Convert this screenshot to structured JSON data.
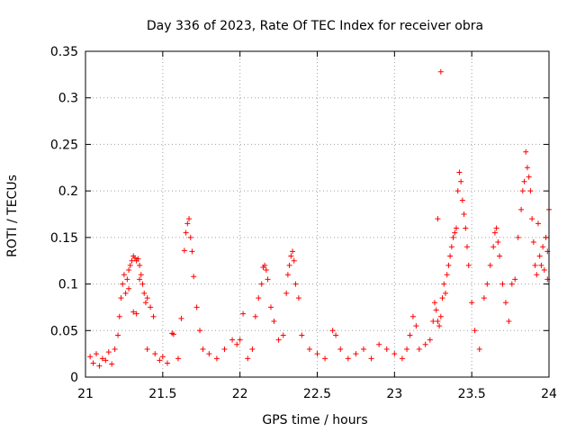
{
  "chart_data": {
    "type": "scatter",
    "title": "Day 336 of 2023, Rate Of TEC Index for receiver obra",
    "xlabel": "GPS time / hours",
    "ylabel": "ROTI / TECUs",
    "xlim": [
      21,
      24
    ],
    "ylim": [
      0,
      0.35
    ],
    "xticks": [
      21,
      21.5,
      22,
      22.5,
      23,
      23.5,
      24
    ],
    "xtick_labels": [
      "21",
      "21.5",
      "22",
      "22.5",
      "23",
      "23.5",
      "24"
    ],
    "yticks": [
      0,
      0.05,
      0.1,
      0.15,
      0.2,
      0.25,
      0.3,
      0.35
    ],
    "ytick_labels": [
      "0",
      "0.05",
      "0.1",
      "0.15",
      "0.2",
      "0.25",
      "0.3",
      "0.35"
    ],
    "grid": true,
    "marker": "+",
    "marker_color": "#ff0000",
    "series": [
      {
        "name": "ROTI",
        "points": [
          [
            21.03,
            0.022
          ],
          [
            21.05,
            0.015
          ],
          [
            21.07,
            0.025
          ],
          [
            21.09,
            0.012
          ],
          [
            21.11,
            0.02
          ],
          [
            21.13,
            0.018
          ],
          [
            21.15,
            0.027
          ],
          [
            21.17,
            0.014
          ],
          [
            21.19,
            0.03
          ],
          [
            21.21,
            0.045
          ],
          [
            21.22,
            0.065
          ],
          [
            21.23,
            0.085
          ],
          [
            21.24,
            0.1
          ],
          [
            21.25,
            0.11
          ],
          [
            21.26,
            0.09
          ],
          [
            21.27,
            0.105
          ],
          [
            21.28,
            0.115
          ],
          [
            21.29,
            0.12
          ],
          [
            21.3,
            0.125
          ],
          [
            21.31,
            0.13
          ],
          [
            21.32,
            0.128
          ],
          [
            21.33,
            0.125
          ],
          [
            21.34,
            0.127
          ],
          [
            21.35,
            0.12
          ],
          [
            21.36,
            0.11
          ],
          [
            21.37,
            0.1
          ],
          [
            21.38,
            0.09
          ],
          [
            21.39,
            0.08
          ],
          [
            21.4,
            0.085
          ],
          [
            21.42,
            0.075
          ],
          [
            21.44,
            0.065
          ],
          [
            21.31,
            0.07
          ],
          [
            21.33,
            0.068
          ],
          [
            21.28,
            0.095
          ],
          [
            21.35,
            0.105
          ],
          [
            21.4,
            0.03
          ],
          [
            21.45,
            0.025
          ],
          [
            21.48,
            0.018
          ],
          [
            21.5,
            0.022
          ],
          [
            21.53,
            0.015
          ],
          [
            21.56,
            0.047
          ],
          [
            21.57,
            0.046
          ],
          [
            21.6,
            0.02
          ],
          [
            21.62,
            0.063
          ],
          [
            21.64,
            0.136
          ],
          [
            21.65,
            0.155
          ],
          [
            21.66,
            0.165
          ],
          [
            21.67,
            0.17
          ],
          [
            21.68,
            0.15
          ],
          [
            21.69,
            0.135
          ],
          [
            21.7,
            0.108
          ],
          [
            21.72,
            0.075
          ],
          [
            21.74,
            0.05
          ],
          [
            21.76,
            0.03
          ],
          [
            21.8,
            0.025
          ],
          [
            21.85,
            0.02
          ],
          [
            21.9,
            0.03
          ],
          [
            21.95,
            0.04
          ],
          [
            21.98,
            0.035
          ],
          [
            22.0,
            0.04
          ],
          [
            22.02,
            0.068
          ],
          [
            22.05,
            0.02
          ],
          [
            22.08,
            0.03
          ],
          [
            22.1,
            0.065
          ],
          [
            22.12,
            0.085
          ],
          [
            22.14,
            0.1
          ],
          [
            22.15,
            0.118
          ],
          [
            22.16,
            0.12
          ],
          [
            22.17,
            0.115
          ],
          [
            22.18,
            0.105
          ],
          [
            22.2,
            0.075
          ],
          [
            22.22,
            0.06
          ],
          [
            22.25,
            0.04
          ],
          [
            22.28,
            0.045
          ],
          [
            22.3,
            0.09
          ],
          [
            22.31,
            0.11
          ],
          [
            22.32,
            0.12
          ],
          [
            22.33,
            0.13
          ],
          [
            22.34,
            0.135
          ],
          [
            22.35,
            0.125
          ],
          [
            22.36,
            0.1
          ],
          [
            22.38,
            0.085
          ],
          [
            22.4,
            0.045
          ],
          [
            22.45,
            0.03
          ],
          [
            22.5,
            0.025
          ],
          [
            22.55,
            0.02
          ],
          [
            22.6,
            0.05
          ],
          [
            22.62,
            0.045
          ],
          [
            22.65,
            0.03
          ],
          [
            22.7,
            0.02
          ],
          [
            22.75,
            0.025
          ],
          [
            22.8,
            0.03
          ],
          [
            22.85,
            0.02
          ],
          [
            22.9,
            0.035
          ],
          [
            22.95,
            0.03
          ],
          [
            23.0,
            0.025
          ],
          [
            23.05,
            0.02
          ],
          [
            23.08,
            0.03
          ],
          [
            23.1,
            0.045
          ],
          [
            23.12,
            0.065
          ],
          [
            23.14,
            0.055
          ],
          [
            23.16,
            0.03
          ],
          [
            23.2,
            0.035
          ],
          [
            23.23,
            0.04
          ],
          [
            23.25,
            0.06
          ],
          [
            23.26,
            0.08
          ],
          [
            23.27,
            0.072
          ],
          [
            23.28,
            0.06
          ],
          [
            23.29,
            0.055
          ],
          [
            23.3,
            0.065
          ],
          [
            23.31,
            0.085
          ],
          [
            23.32,
            0.1
          ],
          [
            23.33,
            0.09
          ],
          [
            23.28,
            0.17
          ],
          [
            23.3,
            0.328
          ],
          [
            23.34,
            0.11
          ],
          [
            23.35,
            0.12
          ],
          [
            23.36,
            0.13
          ],
          [
            23.37,
            0.14
          ],
          [
            23.38,
            0.15
          ],
          [
            23.39,
            0.155
          ],
          [
            23.4,
            0.16
          ],
          [
            23.41,
            0.2
          ],
          [
            23.42,
            0.22
          ],
          [
            23.43,
            0.21
          ],
          [
            23.44,
            0.19
          ],
          [
            23.45,
            0.175
          ],
          [
            23.46,
            0.16
          ],
          [
            23.47,
            0.14
          ],
          [
            23.48,
            0.12
          ],
          [
            23.5,
            0.08
          ],
          [
            23.52,
            0.05
          ],
          [
            23.55,
            0.03
          ],
          [
            23.58,
            0.085
          ],
          [
            23.6,
            0.1
          ],
          [
            23.62,
            0.12
          ],
          [
            23.64,
            0.14
          ],
          [
            23.65,
            0.155
          ],
          [
            23.66,
            0.16
          ],
          [
            23.67,
            0.145
          ],
          [
            23.68,
            0.13
          ],
          [
            23.7,
            0.1
          ],
          [
            23.72,
            0.08
          ],
          [
            23.74,
            0.06
          ],
          [
            23.76,
            0.1
          ],
          [
            23.78,
            0.105
          ],
          [
            23.8,
            0.15
          ],
          [
            23.82,
            0.18
          ],
          [
            23.83,
            0.2
          ],
          [
            23.84,
            0.21
          ],
          [
            23.85,
            0.242
          ],
          [
            23.86,
            0.225
          ],
          [
            23.87,
            0.215
          ],
          [
            23.88,
            0.2
          ],
          [
            23.89,
            0.17
          ],
          [
            23.9,
            0.145
          ],
          [
            23.91,
            0.12
          ],
          [
            23.92,
            0.11
          ],
          [
            23.94,
            0.13
          ],
          [
            23.96,
            0.14
          ],
          [
            23.98,
            0.15
          ],
          [
            23.99,
            0.135
          ],
          [
            24.0,
            0.18
          ],
          [
            23.93,
            0.165
          ],
          [
            23.95,
            0.12
          ],
          [
            23.97,
            0.115
          ],
          [
            23.99,
            0.105
          ]
        ]
      }
    ]
  }
}
